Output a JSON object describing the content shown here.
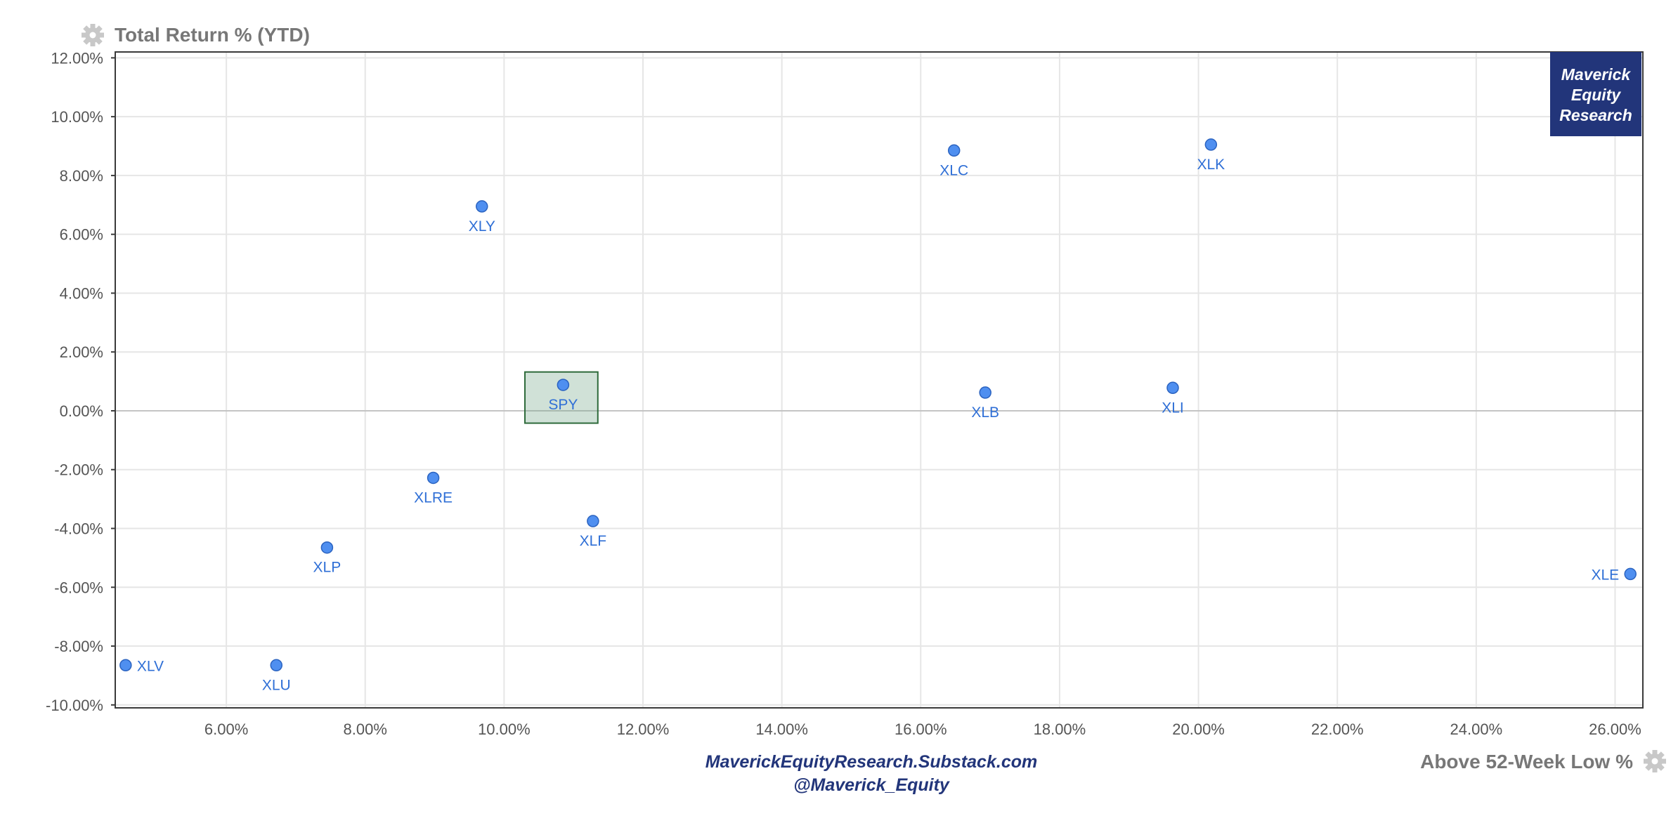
{
  "chart_data": {
    "type": "scatter",
    "ylabel": "Total Return % (YTD)",
    "xlabel": "Above 52-Week Low %",
    "xlim": [
      4.4,
      26.4
    ],
    "ylim": [
      -10.1,
      12.2
    ],
    "xticks": [
      6,
      8,
      10,
      12,
      14,
      16,
      18,
      20,
      22,
      24,
      26
    ],
    "yticks": [
      -10,
      -8,
      -6,
      -4,
      -2,
      0,
      2,
      4,
      6,
      8,
      10,
      12
    ],
    "tick_suffix": "%",
    "grid": true,
    "points": [
      {
        "label": "XLV",
        "x": 4.55,
        "y": -8.65,
        "label_pos": "right"
      },
      {
        "label": "XLU",
        "x": 6.72,
        "y": -8.65,
        "label_pos": "below"
      },
      {
        "label": "XLP",
        "x": 7.45,
        "y": -4.65,
        "label_pos": "below"
      },
      {
        "label": "XLRE",
        "x": 8.98,
        "y": -2.28,
        "label_pos": "below"
      },
      {
        "label": "XLY",
        "x": 9.68,
        "y": 6.95,
        "label_pos": "below"
      },
      {
        "label": "SPY",
        "x": 10.85,
        "y": 0.88,
        "label_pos": "below",
        "highlight": true
      },
      {
        "label": "XLF",
        "x": 11.28,
        "y": -3.75,
        "label_pos": "below"
      },
      {
        "label": "XLC",
        "x": 16.48,
        "y": 8.85,
        "label_pos": "below"
      },
      {
        "label": "XLB",
        "x": 16.93,
        "y": 0.62,
        "label_pos": "below"
      },
      {
        "label": "XLI",
        "x": 19.63,
        "y": 0.78,
        "label_pos": "below"
      },
      {
        "label": "XLK",
        "x": 20.18,
        "y": 9.05,
        "label_pos": "below"
      },
      {
        "label": "XLE",
        "x": 26.22,
        "y": -5.55,
        "label_pos": "left"
      }
    ],
    "highlight_region": {
      "x": [
        10.3,
        11.35
      ],
      "y": [
        -0.42,
        1.32
      ]
    }
  },
  "branding": {
    "box_lines": [
      "Maverick",
      "Equity",
      "Research"
    ],
    "site": "MaverickEquityResearch.Substack.com",
    "handle": "@Maverick_Equity"
  },
  "colors": {
    "point": "#4f8ff0",
    "label": "#2f6fd6",
    "brand": "#22357a",
    "highlight": "#2d6a3a"
  }
}
